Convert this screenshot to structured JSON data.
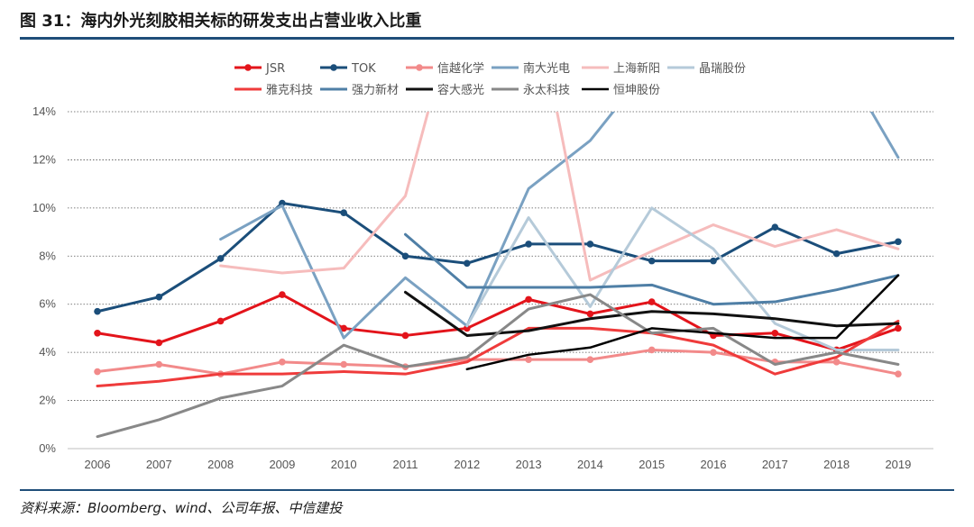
{
  "figure": {
    "title": "图 31：海内外光刻胶相关标的研发支出占营业收入比重",
    "source": "资料来源：Bloomberg、wind、公司年报、中信建投"
  },
  "chart_data": {
    "type": "line",
    "x": [
      2006,
      2007,
      2008,
      2009,
      2010,
      2011,
      2012,
      2013,
      2014,
      2015,
      2016,
      2017,
      2018,
      2019
    ],
    "x_tick_labels": [
      "2006",
      "2007",
      "2008",
      "2009",
      "2010",
      "2011",
      "2012",
      "2013",
      "2014",
      "2015",
      "2016",
      "2017",
      "2018",
      "2019"
    ],
    "ylim": [
      0,
      14
    ],
    "y_ticks": [
      0,
      2,
      4,
      6,
      8,
      10,
      12,
      14
    ],
    "y_tick_labels": [
      "0%",
      "2%",
      "4%",
      "6%",
      "8%",
      "10%",
      "12%",
      "14%"
    ],
    "grid": "horizontal dotted",
    "legend_position": "top",
    "series": [
      {
        "name": "JSR",
        "color": "#e3141b",
        "marker": true,
        "width": 3,
        "values": [
          4.8,
          4.4,
          5.3,
          6.4,
          5.0,
          4.7,
          5.0,
          6.2,
          5.6,
          6.1,
          4.7,
          4.8,
          4.1,
          5.0
        ]
      },
      {
        "name": "TOK",
        "color": "#1b4e7a",
        "marker": true,
        "width": 3,
        "values": [
          5.7,
          6.3,
          7.9,
          10.2,
          9.8,
          8.0,
          7.7,
          8.5,
          8.5,
          7.8,
          7.8,
          9.2,
          8.1,
          8.6
        ]
      },
      {
        "name": "信越化学",
        "color": "#f28a8a",
        "marker": true,
        "width": 3,
        "values": [
          3.2,
          3.5,
          3.1,
          3.6,
          3.5,
          3.4,
          3.7,
          3.7,
          3.7,
          4.1,
          4.0,
          3.6,
          3.6,
          3.1
        ]
      },
      {
        "name": "南大光电",
        "color": "#7aa1c2",
        "marker": false,
        "width": 3,
        "values": [
          null,
          null,
          8.7,
          10.1,
          4.6,
          7.1,
          5.1,
          10.8,
          12.8,
          16.0,
          null,
          null,
          16.5,
          12.1
        ]
      },
      {
        "name": "上海新阳",
        "color": "#f6bcbc",
        "marker": false,
        "width": 3,
        "values": [
          null,
          null,
          7.6,
          7.3,
          7.5,
          10.5,
          20.0,
          20.0,
          7.0,
          8.2,
          9.3,
          8.4,
          9.1,
          8.3
        ]
      },
      {
        "name": "晶瑞股份",
        "color": "#b5cad9",
        "marker": false,
        "width": 3,
        "values": [
          null,
          null,
          null,
          null,
          null,
          null,
          5.1,
          9.6,
          5.9,
          10.0,
          8.3,
          5.2,
          4.1,
          4.1
        ]
      },
      {
        "name": "雅克科技",
        "color": "#ef3b3b",
        "marker": false,
        "width": 3,
        "values": [
          2.6,
          2.8,
          3.1,
          3.1,
          3.2,
          3.1,
          3.6,
          5.0,
          5.0,
          4.8,
          4.3,
          3.1,
          3.8,
          5.3
        ]
      },
      {
        "name": "强力新材",
        "color": "#4f7fa6",
        "marker": false,
        "width": 3,
        "values": [
          null,
          null,
          null,
          null,
          null,
          8.9,
          6.7,
          6.7,
          6.7,
          6.8,
          6.0,
          6.1,
          6.6,
          7.2
        ]
      },
      {
        "name": "容大感光",
        "color": "#111111",
        "marker": false,
        "width": 3,
        "values": [
          null,
          null,
          null,
          null,
          null,
          6.5,
          4.7,
          4.9,
          5.4,
          5.7,
          5.6,
          5.4,
          5.1,
          5.2
        ]
      },
      {
        "name": "永太科技",
        "color": "#888888",
        "marker": false,
        "width": 3,
        "values": [
          0.5,
          1.2,
          2.1,
          2.6,
          4.3,
          3.4,
          3.8,
          5.8,
          6.4,
          4.8,
          5.0,
          3.5,
          4.0,
          3.5
        ]
      },
      {
        "name": "恒坤股份",
        "color": "#000000",
        "marker": false,
        "width": 2.5,
        "values": [
          null,
          null,
          null,
          null,
          null,
          null,
          3.3,
          3.9,
          4.2,
          5.0,
          4.8,
          4.6,
          4.6,
          7.2
        ]
      }
    ]
  }
}
